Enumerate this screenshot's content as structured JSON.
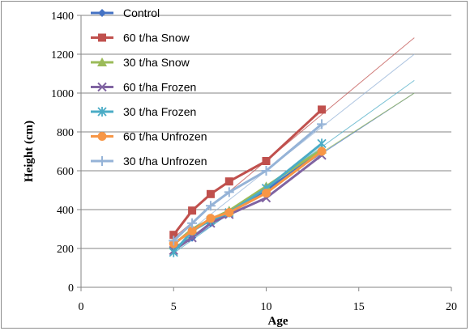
{
  "chart_data": {
    "type": "line",
    "xlabel": "Age",
    "ylabel": "Height (cm)",
    "xlim": [
      0,
      20
    ],
    "ylim": [
      0,
      1400
    ],
    "x_ticks": [
      "0",
      "5",
      "10",
      "15",
      "20"
    ],
    "y_ticks": [
      "0",
      "200",
      "400",
      "600",
      "800",
      "1000",
      "1200",
      "1400"
    ],
    "grid": "horizontal",
    "legend_position": "top-left",
    "series": [
      {
        "name": "Control",
        "color": "#4472c4",
        "marker": "diamond",
        "x": [
          5,
          6,
          7,
          8,
          10,
          13
        ],
        "y": [
          200,
          255,
          330,
          385,
          500,
          700
        ],
        "trend": {
          "x": [
            5,
            18
          ],
          "y": [
            190,
            1000
          ]
        }
      },
      {
        "name": "60 t/ha Snow",
        "color": "#c0504d",
        "marker": "square",
        "x": [
          5,
          6,
          7,
          8,
          10,
          13
        ],
        "y": [
          270,
          395,
          480,
          545,
          650,
          915
        ],
        "trend": {
          "x": [
            5,
            18
          ],
          "y": [
            255,
            1285
          ]
        }
      },
      {
        "name": "30 t/ha Snow",
        "color": "#9bbb59",
        "marker": "triangle",
        "x": [
          5,
          6,
          7,
          8,
          10,
          13
        ],
        "y": [
          220,
          300,
          350,
          395,
          520,
          710
        ],
        "trend": {
          "x": [
            5,
            18
          ],
          "y": [
            205,
            1000
          ]
        }
      },
      {
        "name": "60 t/ha Frozen",
        "color": "#8064a2",
        "marker": "x",
        "x": [
          5,
          6,
          7,
          8,
          10,
          13
        ],
        "y": [
          190,
          255,
          330,
          375,
          460,
          680
        ],
        "trend": null
      },
      {
        "name": "30 t/ha Frozen",
        "color": "#4bacc6",
        "marker": "star",
        "x": [
          5,
          6,
          7,
          8,
          10,
          13
        ],
        "y": [
          180,
          290,
          345,
          385,
          510,
          740
        ],
        "trend": {
          "x": [
            5,
            18
          ],
          "y": [
            175,
            1065
          ]
        }
      },
      {
        "name": "60 t/ha Unfrozen",
        "color": "#f79646",
        "marker": "circle",
        "x": [
          5,
          6,
          7,
          8,
          10,
          13
        ],
        "y": [
          225,
          290,
          355,
          385,
          485,
          700
        ],
        "trend": null
      },
      {
        "name": "30 t/ha Unfrozen",
        "color": "#95b3d7",
        "marker": "plus",
        "x": [
          5,
          6,
          7,
          8,
          10,
          13
        ],
        "y": [
          240,
          330,
          420,
          490,
          600,
          840
        ],
        "trend": {
          "x": [
            5,
            18
          ],
          "y": [
            225,
            1200
          ]
        }
      }
    ]
  }
}
